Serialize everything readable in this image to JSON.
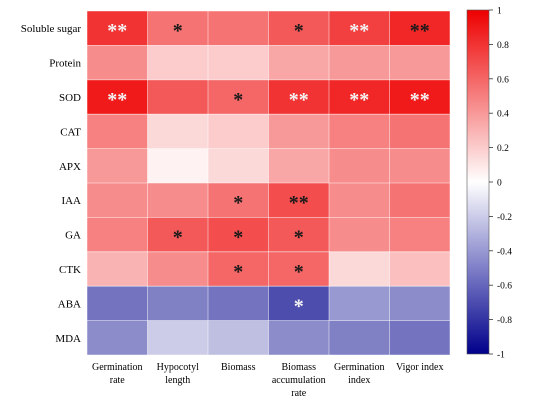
{
  "chart_data": {
    "type": "heatmap",
    "rows": [
      "Soluble sugar",
      "Protein",
      "SOD",
      "CAT",
      "APX",
      "IAA",
      "GA",
      "CTK",
      "ABA",
      "MDA"
    ],
    "columns": [
      [
        "Germination",
        "rate"
      ],
      [
        "Hypocotyl",
        "length"
      ],
      [
        "Biomass"
      ],
      [
        "Biomass",
        "accumulation",
        "rate"
      ],
      [
        "Germination",
        "index"
      ],
      [
        "Vigor index"
      ]
    ],
    "values": [
      [
        0.8,
        0.55,
        0.55,
        0.65,
        0.75,
        0.85
      ],
      [
        0.45,
        0.2,
        0.2,
        0.35,
        0.4,
        0.4
      ],
      [
        0.9,
        0.65,
        0.6,
        0.8,
        0.85,
        0.9
      ],
      [
        0.5,
        0.15,
        0.2,
        0.4,
        0.5,
        0.55
      ],
      [
        0.4,
        0.05,
        0.15,
        0.35,
        0.45,
        0.45
      ],
      [
        0.45,
        0.45,
        0.55,
        0.7,
        0.45,
        0.55
      ],
      [
        0.5,
        0.65,
        0.7,
        0.65,
        0.45,
        0.5
      ],
      [
        0.3,
        0.45,
        0.6,
        0.6,
        0.15,
        0.25
      ],
      [
        -0.55,
        -0.5,
        -0.55,
        -0.7,
        -0.4,
        -0.45
      ],
      [
        -0.45,
        -0.2,
        -0.25,
        -0.45,
        -0.5,
        -0.55
      ]
    ],
    "significance": [
      [
        "**",
        "*",
        "",
        "*",
        "**",
        "**"
      ],
      [
        "",
        "",
        "",
        "",
        "",
        ""
      ],
      [
        "**",
        "",
        "*",
        "**",
        "**",
        "**"
      ],
      [
        "",
        "",
        "",
        "",
        "",
        ""
      ],
      [
        "",
        "",
        "",
        "",
        "",
        ""
      ],
      [
        "",
        "",
        "*",
        "**",
        "",
        ""
      ],
      [
        "",
        "*",
        "*",
        "*",
        "",
        ""
      ],
      [
        "",
        "",
        "*",
        "*",
        "",
        ""
      ],
      [
        "",
        "",
        "",
        "*",
        "",
        ""
      ],
      [
        "",
        "",
        "",
        "",
        "",
        ""
      ]
    ],
    "significance_color": [
      [
        "light",
        "dark",
        "",
        "dark",
        "light",
        "dark"
      ],
      [
        "",
        "",
        "",
        "",
        "",
        ""
      ],
      [
        "light",
        "",
        "dark",
        "light",
        "light",
        "light"
      ],
      [
        "",
        "",
        "",
        "",
        "",
        ""
      ],
      [
        "",
        "",
        "",
        "",
        "",
        ""
      ],
      [
        "",
        "",
        "dark",
        "dark",
        "",
        ""
      ],
      [
        "",
        "dark",
        "dark",
        "dark",
        "",
        ""
      ],
      [
        "",
        "",
        "dark",
        "dark",
        "",
        ""
      ],
      [
        "",
        "",
        "",
        "light",
        "",
        ""
      ],
      [
        "",
        "",
        "",
        "",
        "",
        ""
      ]
    ],
    "colorbar": {
      "range": [
        -1,
        1
      ],
      "ticks": [
        "1",
        "0.8",
        "0.6",
        "0.4",
        "0.2",
        "0",
        "-0.2",
        "-0.4",
        "-0.6",
        "-0.8",
        "-1"
      ],
      "colors": {
        "min": "#00008b",
        "mid": "#ffffff",
        "max": "#ee0000"
      }
    },
    "grid": true,
    "legend_position": "right"
  }
}
